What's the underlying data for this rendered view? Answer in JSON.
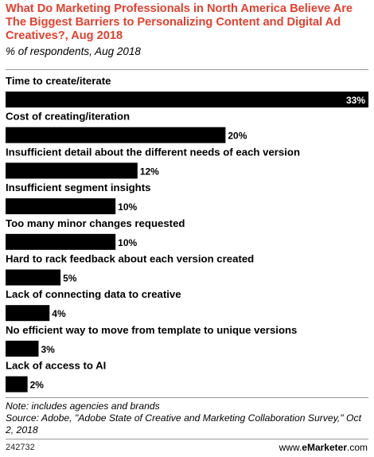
{
  "header": {
    "title": "What Do Marketing Professionals in North America Believe Are The Biggest Barriers to Personalizing Content and Digital Ad Creatives?, Aug 2018",
    "subtitle": "% of respondents, Aug 2018"
  },
  "chart_data": {
    "type": "bar",
    "orientation": "horizontal",
    "title": "What Do Marketing Professionals in North America Believe Are The Biggest Barriers to Personalizing Content and Digital Ad Creatives?, Aug 2018",
    "subtitle": "% of respondents, Aug 2018",
    "categories": [
      "Time to create/iterate",
      "Cost of creating/iteration",
      "Insufficient detail about the different needs of each version",
      "Insufficient segment insights",
      "Too many minor changes requested",
      "Hard to rack feedback about each version created",
      "Lack of connecting data to creative",
      "No efficient way to move from template to unique versions",
      "Lack of access to AI"
    ],
    "values": [
      33,
      20,
      12,
      10,
      10,
      5,
      4,
      3,
      2
    ],
    "value_labels": [
      "33%",
      "20%",
      "12%",
      "10%",
      "10%",
      "5%",
      "4%",
      "3%",
      "2%"
    ],
    "xlim": [
      0,
      33
    ],
    "bar_color": "#000000",
    "grid": false,
    "legend": "none"
  },
  "footer": {
    "note": "Note: includes agencies and brands",
    "source": "Source: Adobe, \"Adobe State of Creative and Marketing Collaboration Survey,\" Oct 2, 2018",
    "chart_id": "242732",
    "brand_prefix": "www.",
    "brand_name": "eMarketer",
    "brand_suffix": ".com"
  },
  "colors": {
    "title": "#e2412f",
    "bar": "#000000",
    "separator": "#999999"
  }
}
